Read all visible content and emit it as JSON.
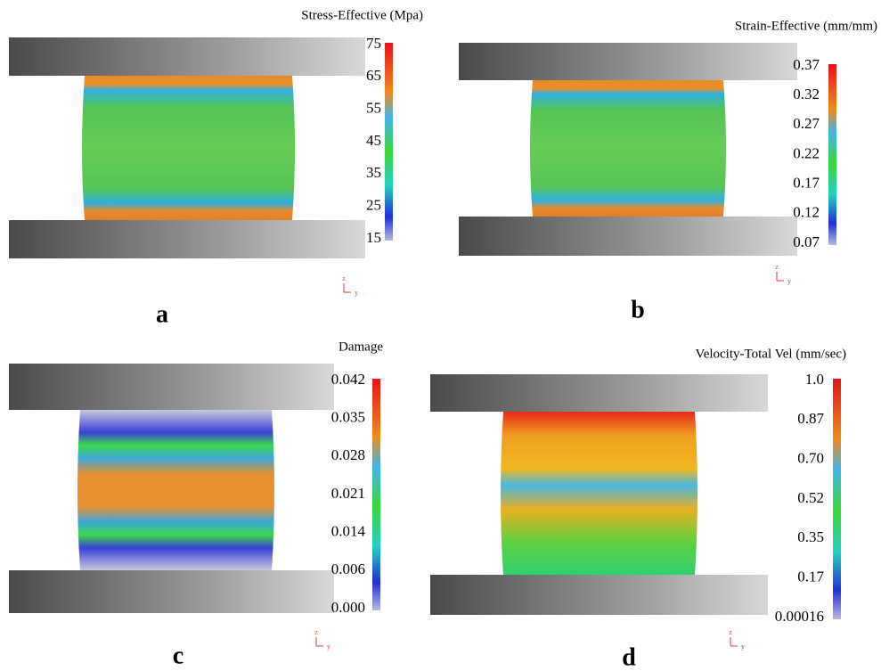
{
  "panels": [
    {
      "letter": "a",
      "title": "Stress-Effective (Mpa)",
      "scale_labels": [
        "75",
        "65",
        "55",
        "45",
        "35",
        "25",
        "15"
      ],
      "axis_labels": [
        "z",
        "y"
      ]
    },
    {
      "letter": "b",
      "title": "Strain-Effective (mm/mm)",
      "scale_labels": [
        "0.37",
        "0.32",
        "0.27",
        "0.22",
        "0.17",
        "0.12",
        "0.07"
      ],
      "axis_labels": [
        "z",
        "y"
      ]
    },
    {
      "letter": "c",
      "title": "Damage",
      "scale_labels": [
        "0.042",
        "0.035",
        "0.028",
        "0.021",
        "0.014",
        "0.006",
        "0.000"
      ],
      "axis_labels": [
        "z",
        "y"
      ]
    },
    {
      "letter": "d",
      "title": "Velocity-Total Vel (mm/sec)",
      "scale_labels": [
        "1.0",
        "0.87",
        "0.70",
        "0.52",
        "0.35",
        "0.17",
        "0.00016"
      ],
      "axis_labels": [
        "z",
        "y"
      ]
    }
  ]
}
